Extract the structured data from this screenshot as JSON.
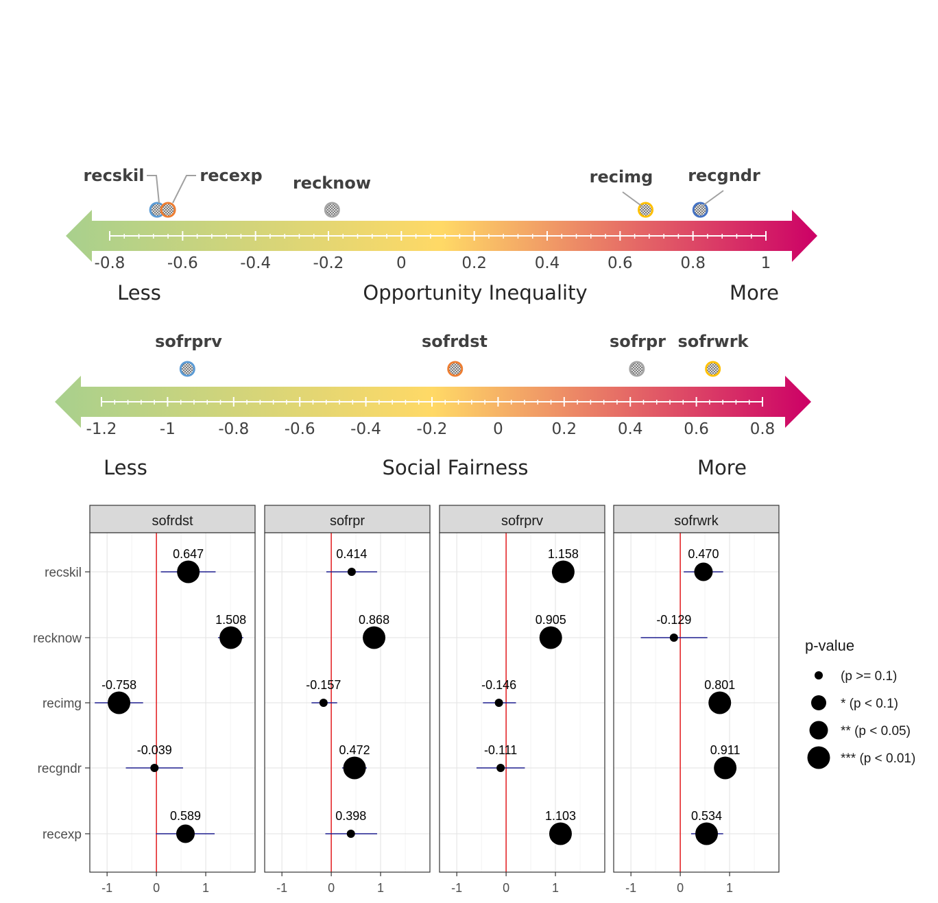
{
  "chart_data": [
    {
      "type": "scatter",
      "title": "",
      "axis_label": "Opportunity Inequality",
      "left_label": "Less",
      "right_label": "More",
      "ticks": [
        "-0.8",
        "-0.6",
        "-0.4",
        "-0.2",
        "0",
        "0.2",
        "0.4",
        "0.6",
        "0.8",
        "1"
      ],
      "range": [
        -0.8,
        1.0
      ],
      "points": [
        {
          "name": "recskil",
          "value": -0.67,
          "ring_color": "#5b9bd5"
        },
        {
          "name": "recexp",
          "value": -0.64,
          "ring_color": "#ed7d31"
        },
        {
          "name": "recknow",
          "value": -0.19,
          "ring_color": "#a5a5a5"
        },
        {
          "name": "recimg",
          "value": 0.67,
          "ring_color": "#ffc000"
        },
        {
          "name": "recgndr",
          "value": 0.82,
          "ring_color": "#4472c4"
        }
      ]
    },
    {
      "type": "scatter",
      "title": "",
      "axis_label": "Social Fairness",
      "left_label": "Less",
      "right_label": "More",
      "ticks": [
        "-1.2",
        "-1",
        "-0.8",
        "-0.6",
        "-0.4",
        "-0.2",
        "0",
        "0.2",
        "0.4",
        "0.6",
        "0.8"
      ],
      "range": [
        -1.2,
        0.8
      ],
      "points": [
        {
          "name": "sofrprv",
          "value": -0.94,
          "ring_color": "#5b9bd5"
        },
        {
          "name": "sofrdst",
          "value": -0.13,
          "ring_color": "#ed7d31"
        },
        {
          "name": "sofrpr",
          "value": 0.42,
          "ring_color": "#a5a5a5"
        },
        {
          "name": "sofrwrk",
          "value": 0.65,
          "ring_color": "#ffc000"
        }
      ]
    },
    {
      "type": "scatter",
      "subtype": "faceted coefficient plot",
      "rows": [
        "recskil",
        "recknow",
        "recimg",
        "recgndr",
        "recexp"
      ],
      "x_ticks": [
        "-1",
        "0",
        "1"
      ],
      "xlim": [
        -1.35,
        2.0
      ],
      "legend": {
        "title": "p-value",
        "placement": "right",
        "entries": [
          {
            "label": "(p >= 0.1)",
            "level": 1
          },
          {
            "label": "* (p < 0.1)",
            "level": 2
          },
          {
            "label": "** (p < 0.05)",
            "level": 3
          },
          {
            "label": "*** (p < 0.01)",
            "level": 4
          }
        ]
      },
      "panels": [
        {
          "name": "sofrdst",
          "estimates": [
            {
              "row": "recskil",
              "value": 0.647,
              "label": "0.647",
              "ci": [
                0.09,
                1.2
              ],
              "level": 4
            },
            {
              "row": "recknow",
              "value": 1.508,
              "label": "1.508",
              "ci": [
                1.25,
                1.76
              ],
              "level": 4
            },
            {
              "row": "recimg",
              "value": -0.758,
              "label": "-0.758",
              "ci": [
                -1.25,
                -0.27
              ],
              "level": 4
            },
            {
              "row": "recgndr",
              "value": -0.039,
              "label": "-0.039",
              "ci": [
                -0.62,
                0.54
              ],
              "level": 1
            },
            {
              "row": "recexp",
              "value": 0.589,
              "label": "0.589",
              "ci": [
                -0.01,
                1.18
              ],
              "level": 3
            }
          ]
        },
        {
          "name": "sofrpr",
          "estimates": [
            {
              "row": "recskil",
              "value": 0.414,
              "label": "0.414",
              "ci": [
                -0.1,
                0.93
              ],
              "level": 1
            },
            {
              "row": "recknow",
              "value": 0.868,
              "label": "0.868",
              "ci": [
                0.68,
                1.06
              ],
              "level": 4
            },
            {
              "row": "recimg",
              "value": -0.157,
              "label": "-0.157",
              "ci": [
                -0.4,
                0.12
              ],
              "level": 1
            },
            {
              "row": "recgndr",
              "value": 0.472,
              "label": "0.472",
              "ci": [
                0.22,
                0.72
              ],
              "level": 4
            },
            {
              "row": "recexp",
              "value": 0.398,
              "label": "0.398",
              "ci": [
                -0.12,
                0.93
              ],
              "level": 1
            }
          ]
        },
        {
          "name": "sofrprv",
          "estimates": [
            {
              "row": "recskil",
              "value": 1.158,
              "label": "1.158",
              "ci": [
                0.95,
                1.36
              ],
              "level": 4
            },
            {
              "row": "recknow",
              "value": 0.905,
              "label": "0.905",
              "ci": [
                0.7,
                1.1
              ],
              "level": 4
            },
            {
              "row": "recimg",
              "value": -0.146,
              "label": "-0.146",
              "ci": [
                -0.47,
                0.2
              ],
              "level": 1
            },
            {
              "row": "recgndr",
              "value": -0.111,
              "label": "-0.111",
              "ci": [
                -0.6,
                0.38
              ],
              "level": 1
            },
            {
              "row": "recexp",
              "value": 1.103,
              "label": "1.103",
              "ci": [
                0.92,
                1.29
              ],
              "level": 4
            }
          ]
        },
        {
          "name": "sofrwrk",
          "estimates": [
            {
              "row": "recskil",
              "value": 0.47,
              "label": "0.470",
              "ci": [
                0.07,
                0.87
              ],
              "level": 3
            },
            {
              "row": "recknow",
              "value": -0.129,
              "label": "-0.129",
              "ci": [
                -0.8,
                0.55
              ],
              "level": 1
            },
            {
              "row": "recimg",
              "value": 0.801,
              "label": "0.801",
              "ci": [
                0.62,
                0.98
              ],
              "level": 4
            },
            {
              "row": "recgndr",
              "value": 0.911,
              "label": "0.911",
              "ci": [
                0.73,
                1.09
              ],
              "level": 4
            },
            {
              "row": "recexp",
              "value": 0.534,
              "label": "0.534",
              "ci": [
                0.22,
                0.87
              ],
              "level": 4
            }
          ]
        }
      ]
    }
  ]
}
